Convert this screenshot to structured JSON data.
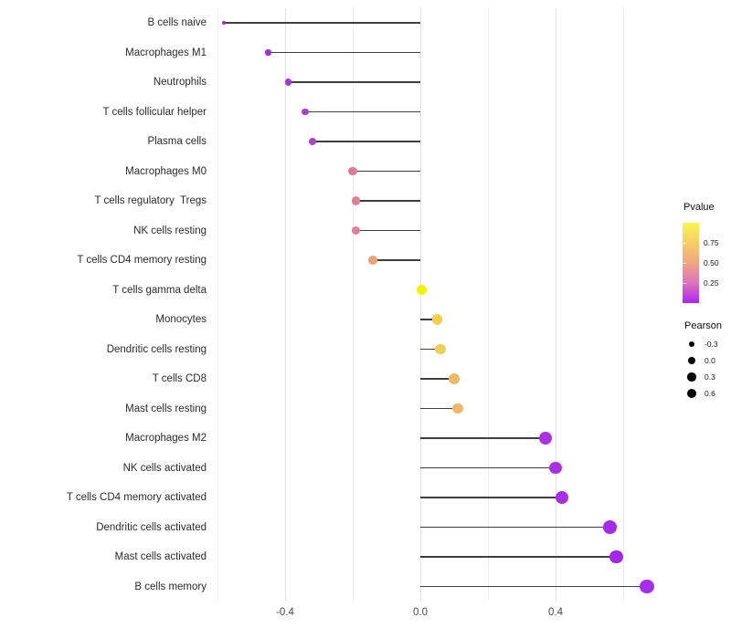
{
  "chart_data": {
    "type": "lollipop",
    "title": "",
    "xlabel": "",
    "ylabel": "",
    "categories": [
      "B cells naive",
      "Macrophages M1",
      "Neutrophils",
      "T cells follicular helper",
      "Plasma cells",
      "Macrophages M0",
      "T cells regulatory  Tregs",
      "NK cells resting",
      "T cells CD4 memory resting",
      "T cells gamma delta",
      "Monocytes",
      "Dendritic cells resting",
      "T cells CD8",
      "Mast cells resting",
      "Macrophages M2",
      "NK cells activated",
      "T cells CD4 memory activated",
      "Dendritic cells activated",
      "Mast cells activated",
      "B cells memory"
    ],
    "series": [
      {
        "name": "Pearson correlation",
        "values": [
          -0.58,
          -0.45,
          -0.39,
          -0.34,
          -0.32,
          -0.2,
          -0.19,
          -0.19,
          -0.14,
          0.005,
          0.05,
          0.06,
          0.1,
          0.11,
          0.37,
          0.4,
          0.42,
          0.56,
          0.58,
          0.67
        ]
      }
    ],
    "point_colors": [
      "#9132C8",
      "#9C35D3",
      "#A43BD4",
      "#A83ED2",
      "#AC45CE",
      "#DE7C96",
      "#DF7E94",
      "#E07F93",
      "#EBA277",
      "#F2F303",
      "#F3CF4E",
      "#F2CE59",
      "#F0B867",
      "#F0B76B",
      "#AB34E2",
      "#A831E4",
      "#A72FE5",
      "#A52BE7",
      "#A427E9",
      "#A42CEA"
    ],
    "stem_color": "#3f3f3f",
    "background": "#ffffff",
    "grid": "vertical only",
    "xlim": [
      -0.615,
      0.71
    ],
    "x_ticks": [
      {
        "label": "-0.4",
        "value": -0.4
      },
      {
        "label": "0.0",
        "value": 0.0
      },
      {
        "label": "0.4",
        "value": 0.4
      }
    ],
    "x_minor_gridlines": [
      -0.6,
      -0.2,
      0.2,
      0.6
    ],
    "legend_position": "right",
    "legend": {
      "pvalue": {
        "title": "Pvalue",
        "tick_labels": [
          "0.75",
          "0.50",
          "0.25"
        ],
        "tick_values": [
          0.75,
          0.5,
          0.25
        ],
        "range": [
          0,
          1
        ],
        "gradient_stops_top_to_bottom": [
          "#FAF64D",
          "#F6CE67",
          "#F0A581",
          "#DB74B8",
          "#AE22F3"
        ]
      },
      "pearson": {
        "title": "Pearson",
        "key_labels": [
          "-0.3",
          "0.0",
          "0.3",
          "0.6"
        ],
        "key_values": [
          -0.3,
          0.0,
          0.3,
          0.6
        ],
        "key_color": "#000000"
      }
    }
  }
}
